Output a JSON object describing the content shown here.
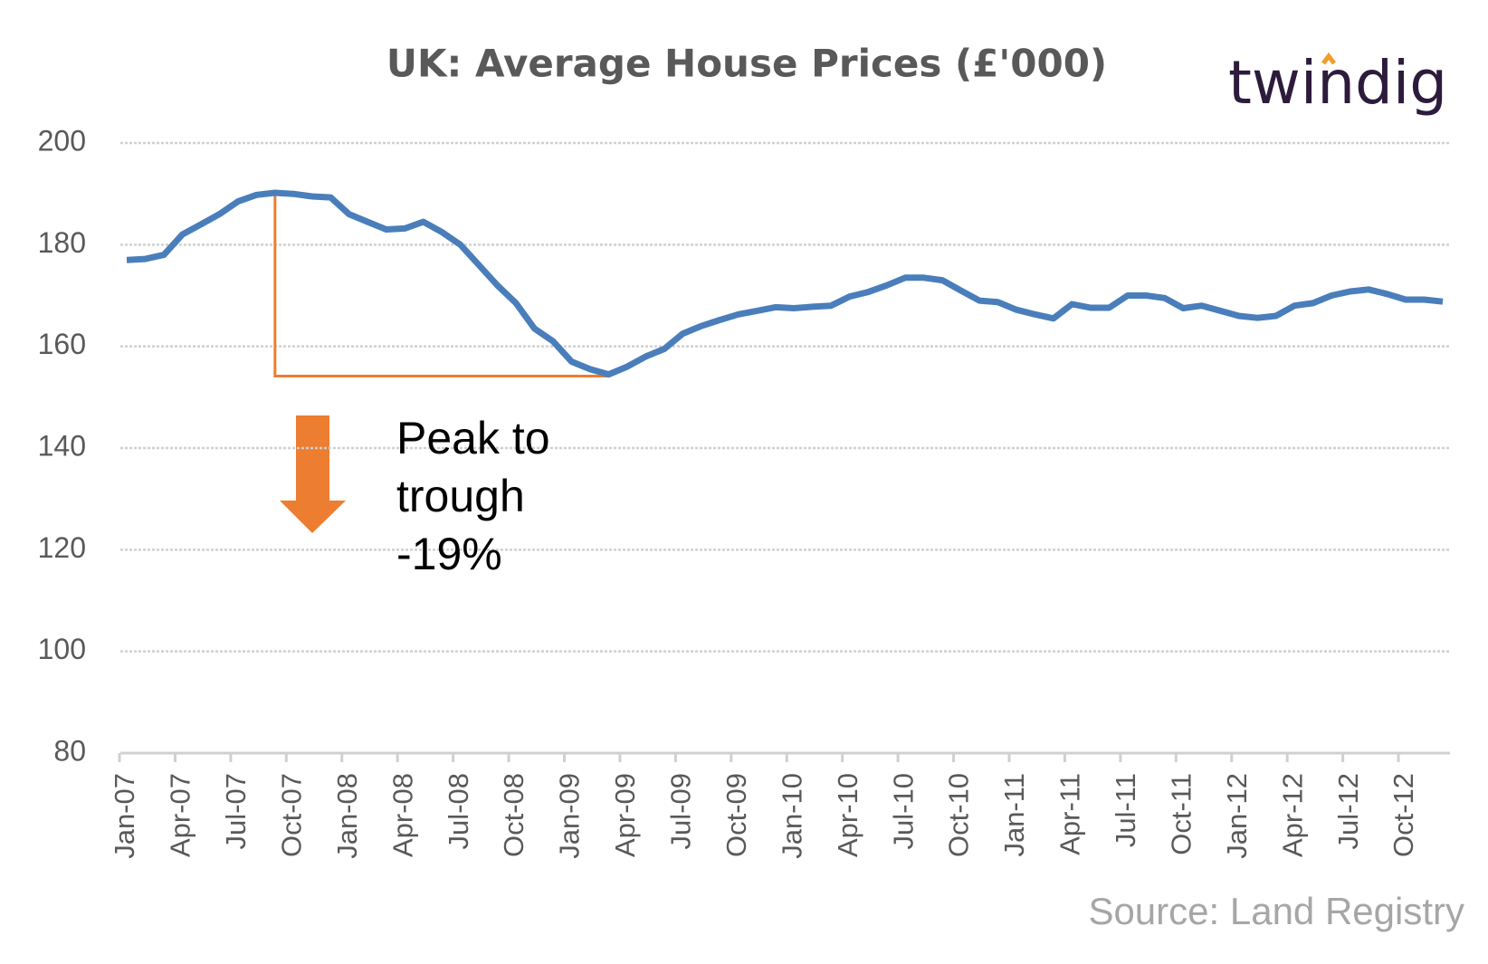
{
  "chart_data": {
    "type": "line",
    "title": "UK: Average House Prices (£'000)",
    "logo": "twindig",
    "source": "Source: Land Registry",
    "annotation": [
      "Peak to",
      "trough",
      "-19%"
    ],
    "categories": [
      "Jan-07",
      null,
      null,
      "Apr-07",
      null,
      null,
      "Jul-07",
      null,
      null,
      "Oct-07",
      null,
      null,
      "Jan-08",
      null,
      null,
      "Apr-08",
      null,
      null,
      "Jul-08",
      null,
      null,
      "Oct-08",
      null,
      null,
      "Jan-09",
      null,
      null,
      "Apr-09",
      null,
      null,
      "Jul-09",
      null,
      null,
      "Oct-09",
      null,
      null,
      "Jan-10",
      null,
      null,
      "Apr-10",
      null,
      null,
      "Jul-10",
      null,
      null,
      "Oct-10",
      null,
      null,
      "Jan-11",
      null,
      null,
      "Apr-11",
      null,
      null,
      "Jul-11",
      null,
      null,
      "Oct-11",
      null,
      null,
      "Jan-12",
      null,
      null,
      "Apr-12",
      null,
      null,
      "Jul-12",
      null,
      null,
      "Oct-12",
      null,
      null
    ],
    "series": [
      {
        "color": "#4a7ebb",
        "values": [
          177,
          177.2,
          178,
          182,
          184,
          186,
          188.5,
          189.8,
          190.2,
          190,
          189.5,
          189.3,
          186,
          184.5,
          183,
          183.2,
          184.5,
          182.5,
          180,
          176,
          172,
          168.5,
          163.5,
          161,
          157,
          155.5,
          154.5,
          156,
          158,
          159.5,
          162.5,
          164,
          165.2,
          166.3,
          167,
          167.7,
          167.5,
          167.8,
          168,
          169.8,
          170.7,
          172,
          173.5,
          173.5,
          173,
          171,
          169,
          168.7,
          167.2,
          166.3,
          165.5,
          168.3,
          167.6,
          167.6,
          170,
          170,
          169.5,
          167.5,
          168,
          167,
          166,
          165.6,
          166,
          168,
          168.5,
          170,
          170.8,
          171.2,
          170.3,
          169.2,
          169.2,
          168.8
        ]
      }
    ],
    "annotation_color": "#ed7d31",
    "ylim": [
      80,
      200
    ],
    "yticks": [
      80,
      100,
      120,
      140,
      160,
      180,
      200
    ],
    "grid": true
  }
}
